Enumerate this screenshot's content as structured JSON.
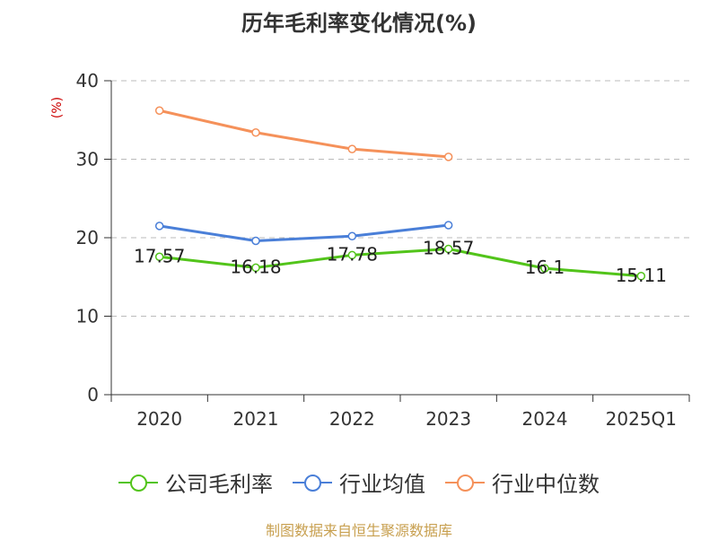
{
  "chart_data": {
    "type": "line",
    "title": "历年毛利率变化情况(%)",
    "ylabel": "(%)",
    "xlabel": "",
    "categories": [
      "2020",
      "2021",
      "2022",
      "2023",
      "2024",
      "2025Q1"
    ],
    "ylim": [
      0,
      40
    ],
    "yticks": [
      0,
      10,
      20,
      30,
      40
    ],
    "grid": true,
    "series": [
      {
        "name": "公司毛利率",
        "color": "#52c41a",
        "values": [
          17.57,
          16.18,
          17.78,
          18.57,
          16.1,
          15.11
        ],
        "labels": [
          "17.57",
          "16.18",
          "17.78",
          "18.57",
          "16.1",
          "15.11"
        ]
      },
      {
        "name": "行业均值",
        "color": "#4a7fd8",
        "values": [
          21.5,
          19.6,
          20.2,
          21.6,
          null,
          null
        ]
      },
      {
        "name": "行业中位数",
        "color": "#f5915a",
        "values": [
          36.2,
          33.4,
          31.3,
          30.3,
          null,
          null
        ]
      }
    ]
  },
  "footer": "制图数据来自恒生聚源数据库"
}
